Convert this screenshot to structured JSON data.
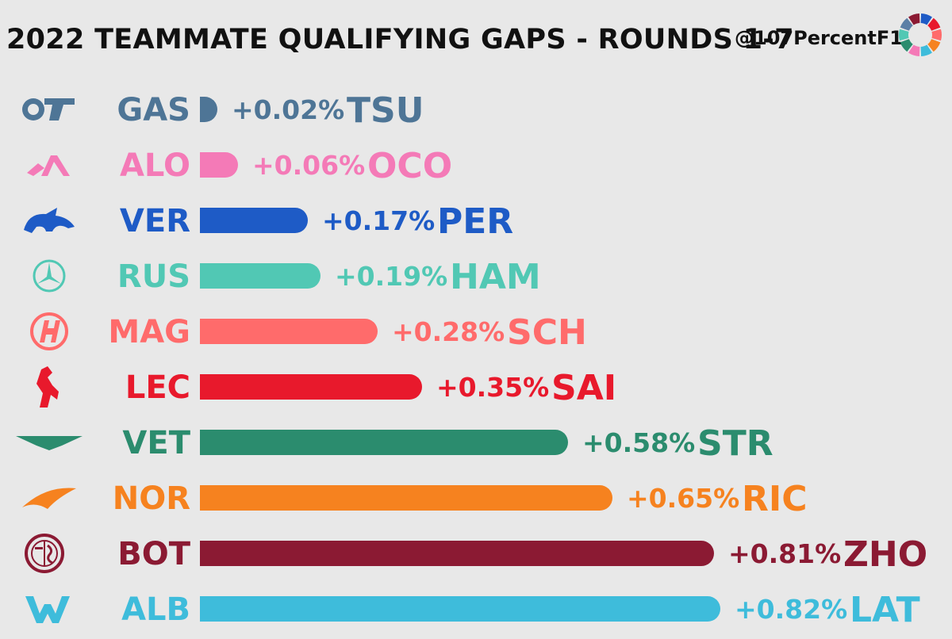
{
  "header": {
    "title": "2022 TEAMMATE QUALIFYING GAPS - ROUNDS 1-7",
    "handle": "@107PercentF1",
    "logo_icon": "ring-logo-icon",
    "logo_colors": [
      "#1e5bc6",
      "#e8192c",
      "#ff6b6b",
      "#f6821f",
      "#3ebcdb",
      "#f47ab7",
      "#2b8c6e",
      "#51c8b4",
      "#5b7fa6",
      "#8b1a33"
    ]
  },
  "chart_data": {
    "type": "bar",
    "orientation": "horizontal",
    "unit": "%",
    "rows": [
      {
        "team_icon": "alphatauri-logo-icon",
        "driver": "GAS",
        "teammate": "TSU",
        "gap": 0.02,
        "label": "+0.02%",
        "color": "#4e7596"
      },
      {
        "team_icon": "alpine-logo-icon",
        "driver": "ALO",
        "teammate": "OCO",
        "gap": 0.06,
        "label": "+0.06%",
        "color": "#f47ab7"
      },
      {
        "team_icon": "redbull-logo-icon",
        "driver": "VER",
        "teammate": "PER",
        "gap": 0.17,
        "label": "+0.17%",
        "color": "#1e5bc6"
      },
      {
        "team_icon": "mercedes-logo-icon",
        "driver": "RUS",
        "teammate": "HAM",
        "gap": 0.19,
        "label": "+0.19%",
        "color": "#51c8b4"
      },
      {
        "team_icon": "haas-logo-icon",
        "driver": "MAG",
        "teammate": "SCH",
        "gap": 0.28,
        "label": "+0.28%",
        "color": "#ff6b6b"
      },
      {
        "team_icon": "ferrari-logo-icon",
        "driver": "LEC",
        "teammate": "SAI",
        "gap": 0.35,
        "label": "+0.35%",
        "color": "#e8192c"
      },
      {
        "team_icon": "astonmartin-logo-icon",
        "driver": "VET",
        "teammate": "STR",
        "gap": 0.58,
        "label": "+0.58%",
        "color": "#2b8c6e"
      },
      {
        "team_icon": "mclaren-logo-icon",
        "driver": "NOR",
        "teammate": "RIC",
        "gap": 0.65,
        "label": "+0.65%",
        "color": "#f6821f"
      },
      {
        "team_icon": "alfaromeo-logo-icon",
        "driver": "BOT",
        "teammate": "ZHO",
        "gap": 0.81,
        "label": "+0.81%",
        "color": "#8b1a33"
      },
      {
        "team_icon": "williams-logo-icon",
        "driver": "ALB",
        "teammate": "LAT",
        "gap": 0.82,
        "label": "+0.82%",
        "color": "#3ebcdb"
      }
    ]
  }
}
